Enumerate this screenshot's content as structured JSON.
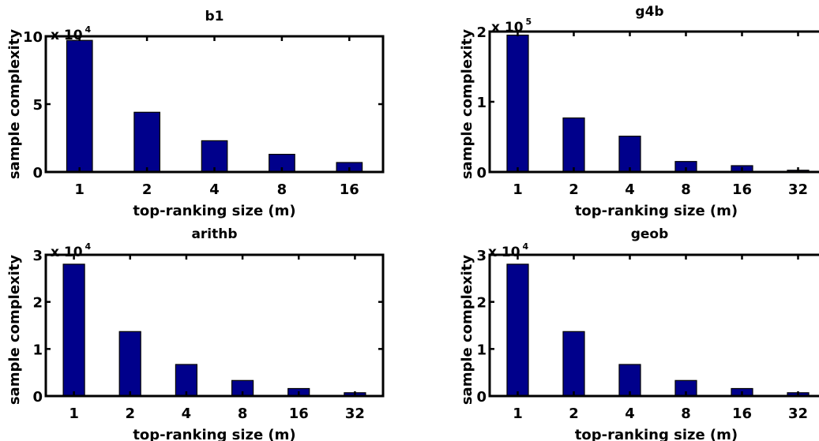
{
  "chart_data": [
    {
      "type": "bar",
      "title": "b1",
      "xlabel": "top-ranking size (m)",
      "ylabel": "sample complexity",
      "multiplier_base": "x 10",
      "multiplier_exp": "4",
      "categories": [
        "1",
        "2",
        "4",
        "8",
        "16"
      ],
      "values": [
        9.7,
        4.4,
        2.3,
        1.3,
        0.7
      ],
      "ylim": [
        0,
        10
      ],
      "yticks": [
        {
          "v": 0,
          "label": "0"
        },
        {
          "v": 5,
          "label": "5"
        },
        {
          "v": 10,
          "label": "10"
        }
      ]
    },
    {
      "type": "bar",
      "title": "g4b",
      "xlabel": "top-ranking size (m)",
      "ylabel": "sample complexity",
      "multiplier_base": "x 10",
      "multiplier_exp": "5",
      "categories": [
        "1",
        "2",
        "4",
        "8",
        "16",
        "32"
      ],
      "values": [
        1.95,
        0.77,
        0.51,
        0.15,
        0.09,
        0.025
      ],
      "ylim": [
        0,
        2
      ],
      "yticks": [
        {
          "v": 0,
          "label": "0"
        },
        {
          "v": 1,
          "label": "1"
        },
        {
          "v": 2,
          "label": "2"
        }
      ]
    },
    {
      "type": "bar",
      "title": "arithb",
      "xlabel": "top-ranking size (m)",
      "ylabel": "sample complexity",
      "multiplier_base": "x 10",
      "multiplier_exp": "4",
      "categories": [
        "1",
        "2",
        "4",
        "8",
        "16",
        "32"
      ],
      "values": [
        2.8,
        1.37,
        0.67,
        0.33,
        0.16,
        0.07
      ],
      "ylim": [
        0,
        3
      ],
      "yticks": [
        {
          "v": 0,
          "label": "0"
        },
        {
          "v": 1,
          "label": "1"
        },
        {
          "v": 2,
          "label": "2"
        },
        {
          "v": 3,
          "label": "3"
        }
      ]
    },
    {
      "type": "bar",
      "title": "geob",
      "xlabel": "top-ranking size (m)",
      "ylabel": "sample complexity",
      "multiplier_base": "x 10",
      "multiplier_exp": "4",
      "categories": [
        "1",
        "2",
        "4",
        "8",
        "16",
        "32"
      ],
      "values": [
        2.8,
        1.37,
        0.67,
        0.33,
        0.16,
        0.07
      ],
      "ylim": [
        0,
        3
      ],
      "yticks": [
        {
          "v": 0,
          "label": "0"
        },
        {
          "v": 1,
          "label": "1"
        },
        {
          "v": 2,
          "label": "2"
        },
        {
          "v": 3,
          "label": "3"
        }
      ]
    }
  ],
  "colors": {
    "bar_fill": "#00008b",
    "frame": "#000000"
  }
}
